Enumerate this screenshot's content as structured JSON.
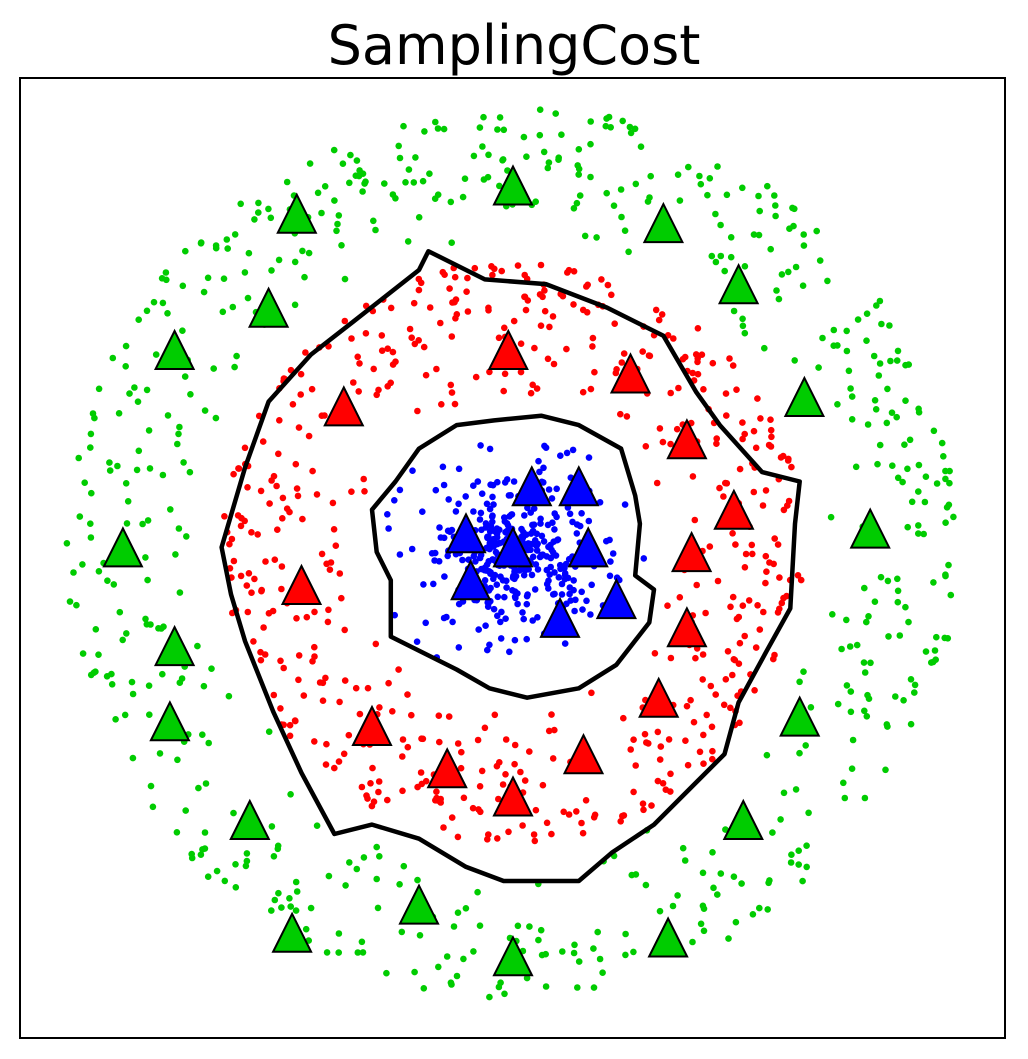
{
  "chart_data": {
    "type": "scatter",
    "title": "SamplingCost",
    "xlabel": "",
    "ylabel": "",
    "xlim": [
      -1.0,
      1.0
    ],
    "ylim": [
      -1.0,
      1.0
    ],
    "grid": false,
    "legend": "none",
    "colors": {
      "inner": "#0000ff",
      "middle": "#ff0000",
      "outer": "#00cc00",
      "boundary": "#000000",
      "frame": "#000000"
    },
    "point_clouds": [
      {
        "class": "inner",
        "radius_range": [
          0.0,
          0.3
        ],
        "count": 450,
        "description_only": false
      },
      {
        "class": "middle",
        "radius_range": [
          0.3,
          0.62
        ],
        "count": 550,
        "description_only": false
      },
      {
        "class": "outer",
        "radius_range": [
          0.62,
          0.95
        ],
        "count": 600,
        "description_only": false
      }
    ],
    "prototypes": {
      "inner": [
        [
          0.04,
          0.13
        ],
        [
          0.14,
          0.13
        ],
        [
          -0.1,
          0.03
        ],
        [
          0.0,
          0.0
        ],
        [
          0.16,
          0.0
        ],
        [
          -0.09,
          -0.07
        ],
        [
          0.22,
          -0.11
        ],
        [
          0.1,
          -0.15
        ]
      ],
      "middle": [
        [
          -0.01,
          0.42
        ],
        [
          0.25,
          0.37
        ],
        [
          -0.36,
          0.3
        ],
        [
          0.37,
          0.23
        ],
        [
          0.47,
          0.08
        ],
        [
          0.38,
          -0.01
        ],
        [
          -0.45,
          -0.08
        ],
        [
          0.37,
          -0.17
        ],
        [
          0.31,
          -0.32
        ],
        [
          -0.3,
          -0.38
        ],
        [
          0.15,
          -0.44
        ],
        [
          -0.14,
          -0.47
        ],
        [
          0.0,
          -0.53
        ]
      ],
      "outer": [
        [
          0.0,
          0.77
        ],
        [
          -0.46,
          0.71
        ],
        [
          0.32,
          0.69
        ],
        [
          0.48,
          0.56
        ],
        [
          -0.52,
          0.51
        ],
        [
          -0.72,
          0.42
        ],
        [
          0.62,
          0.32
        ],
        [
          0.76,
          0.04
        ],
        [
          -0.83,
          0.0
        ],
        [
          -0.72,
          -0.21
        ],
        [
          0.61,
          -0.36
        ],
        [
          -0.73,
          -0.37
        ],
        [
          -0.56,
          -0.58
        ],
        [
          0.49,
          -0.58
        ],
        [
          -0.2,
          -0.76
        ],
        [
          -0.47,
          -0.82
        ],
        [
          -0.0,
          -0.87
        ],
        [
          0.33,
          -0.83
        ]
      ]
    },
    "boundaries": [
      {
        "name": "inner-boundary",
        "radius": 0.3,
        "points": [
          [
            -0.3,
            0.09
          ],
          [
            -0.25,
            0.15
          ],
          [
            -0.2,
            0.22
          ],
          [
            -0.12,
            0.27
          ],
          [
            -0.04,
            0.28
          ],
          [
            0.06,
            0.29
          ],
          [
            0.14,
            0.27
          ],
          [
            0.23,
            0.22
          ],
          [
            0.26,
            0.12
          ],
          [
            0.27,
            0.06
          ],
          [
            0.26,
            -0.05
          ],
          [
            0.3,
            -0.08
          ],
          [
            0.29,
            -0.15
          ],
          [
            0.22,
            -0.24
          ],
          [
            0.14,
            -0.29
          ],
          [
            0.03,
            -0.31
          ],
          [
            -0.05,
            -0.29
          ],
          [
            -0.12,
            -0.25
          ],
          [
            -0.22,
            -0.2
          ],
          [
            -0.26,
            -0.18
          ],
          [
            -0.26,
            -0.06
          ],
          [
            -0.29,
            0.0
          ],
          [
            -0.3,
            0.09
          ]
        ]
      },
      {
        "name": "outer-boundary",
        "radius": 0.62,
        "points": [
          [
            -0.62,
            0.01
          ],
          [
            -0.57,
            0.18
          ],
          [
            -0.52,
            0.32
          ],
          [
            -0.43,
            0.42
          ],
          [
            -0.34,
            0.49
          ],
          [
            -0.2,
            0.6
          ],
          [
            -0.18,
            0.64
          ],
          [
            -0.06,
            0.58
          ],
          [
            0.07,
            0.57
          ],
          [
            0.2,
            0.52
          ],
          [
            0.32,
            0.46
          ],
          [
            0.39,
            0.34
          ],
          [
            0.44,
            0.27
          ],
          [
            0.53,
            0.17
          ],
          [
            0.61,
            0.15
          ],
          [
            0.6,
            0.06
          ],
          [
            0.59,
            -0.12
          ],
          [
            0.54,
            -0.21
          ],
          [
            0.48,
            -0.32
          ],
          [
            0.45,
            -0.43
          ],
          [
            0.38,
            -0.5
          ],
          [
            0.3,
            -0.58
          ],
          [
            0.21,
            -0.64
          ],
          [
            0.14,
            -0.7
          ],
          [
            -0.02,
            -0.7
          ],
          [
            -0.1,
            -0.67
          ],
          [
            -0.2,
            -0.61
          ],
          [
            -0.3,
            -0.58
          ],
          [
            -0.38,
            -0.6
          ],
          [
            -0.45,
            -0.47
          ],
          [
            -0.51,
            -0.34
          ],
          [
            -0.57,
            -0.19
          ],
          [
            -0.6,
            -0.09
          ],
          [
            -0.62,
            0.01
          ]
        ]
      }
    ]
  }
}
